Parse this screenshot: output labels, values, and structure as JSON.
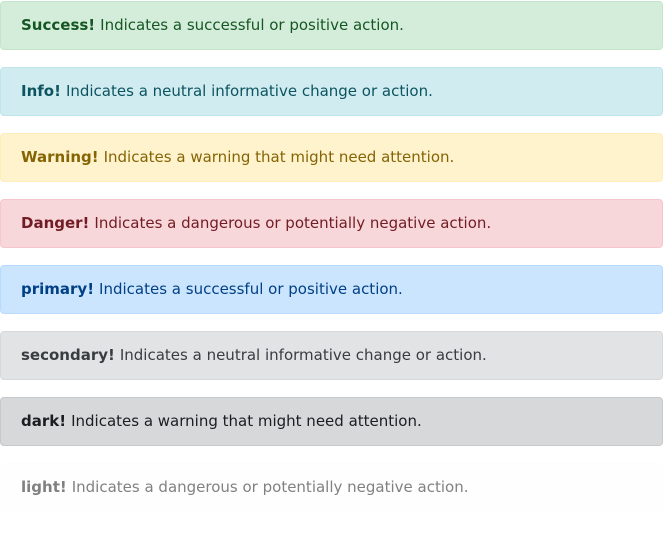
{
  "alerts": [
    {
      "variant": "success",
      "title": "Success!",
      "message": "Indicates a successful or positive action.",
      "bg": "#d4edda",
      "text_color": "#155724"
    },
    {
      "variant": "info",
      "title": "Info!",
      "message": "Indicates a neutral informative change or action.",
      "bg": "#d1ecf1",
      "text_color": "#0c5460"
    },
    {
      "variant": "warning",
      "title": "Warning!",
      "message": "Indicates a warning that might need attention.",
      "bg": "#fff3cd",
      "text_color": "#856404"
    },
    {
      "variant": "danger",
      "title": "Danger!",
      "message": "Indicates a dangerous or potentially negative action.",
      "bg": "#f8d7da",
      "text_color": "#721c24"
    },
    {
      "variant": "primary",
      "title": "primary!",
      "message": "Indicates a successful or positive action.",
      "bg": "#cce5ff",
      "text_color": "#004085"
    },
    {
      "variant": "secondary",
      "title": "secondary!",
      "message": "Indicates a neutral informative change or action.",
      "bg": "#e2e3e5",
      "text_color": "#383d41"
    },
    {
      "variant": "dark",
      "title": "dark!",
      "message": "Indicates a warning that might need attention.",
      "bg": "#d6d8d9",
      "text_color": "#1b1e21"
    },
    {
      "variant": "light",
      "title": "light!",
      "message": "Indicates a dangerous or potentially negative action.",
      "bg": "#fefefe",
      "text_color": "#818182"
    }
  ]
}
